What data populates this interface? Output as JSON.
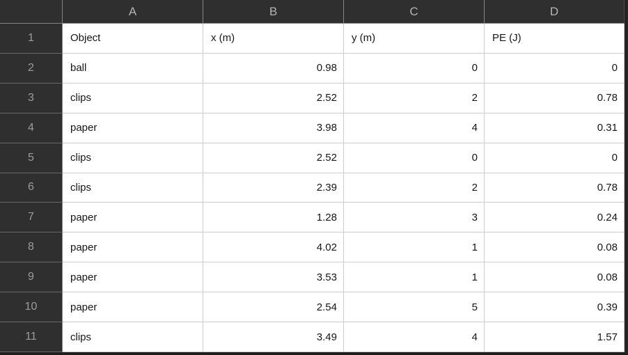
{
  "sheet": {
    "column_letters": [
      "A",
      "B",
      "C",
      "D"
    ],
    "row_numbers": [
      "1",
      "2",
      "3",
      "4",
      "5",
      "6",
      "7",
      "8",
      "9",
      "10",
      "11"
    ],
    "cells": [
      [
        "Object",
        "x (m)",
        "y (m)",
        "PE (J)"
      ],
      [
        "ball",
        "0.98",
        "0",
        "0"
      ],
      [
        "clips",
        "2.52",
        "2",
        "0.78"
      ],
      [
        "paper",
        "3.98",
        "4",
        "0.31"
      ],
      [
        "clips",
        "2.52",
        "0",
        "0"
      ],
      [
        "clips",
        "2.39",
        "2",
        "0.78"
      ],
      [
        "paper",
        "1.28",
        "3",
        "0.24"
      ],
      [
        "paper",
        "4.02",
        "1",
        "0.08"
      ],
      [
        "paper",
        "3.53",
        "1",
        "0.08"
      ],
      [
        "paper",
        "2.54",
        "5",
        "0.39"
      ],
      [
        "clips",
        "3.49",
        "4",
        "1.57"
      ]
    ],
    "colors": {
      "header_bg": "#2f2f2f",
      "header_text": "#b5b5b5",
      "row_number_text": "#9d9d9d",
      "header_grid_line": "#858585",
      "cell_bg": "#ffffff",
      "cell_text": "#161616",
      "body_grid_line": "#cdcdcd",
      "frame": "#242424"
    }
  },
  "chart_data": {
    "type": "table",
    "columns": [
      "Object",
      "x (m)",
      "y (m)",
      "PE (J)"
    ],
    "rows": [
      [
        "ball",
        0.98,
        0,
        0
      ],
      [
        "clips",
        2.52,
        2,
        0.78
      ],
      [
        "paper",
        3.98,
        4,
        0.31
      ],
      [
        "clips",
        2.52,
        0,
        0
      ],
      [
        "clips",
        2.39,
        2,
        0.78
      ],
      [
        "paper",
        1.28,
        3,
        0.24
      ],
      [
        "paper",
        4.02,
        1,
        0.08
      ],
      [
        "paper",
        3.53,
        1,
        0.08
      ],
      [
        "paper",
        2.54,
        5,
        0.39
      ],
      [
        "clips",
        3.49,
        4,
        1.57
      ]
    ]
  }
}
